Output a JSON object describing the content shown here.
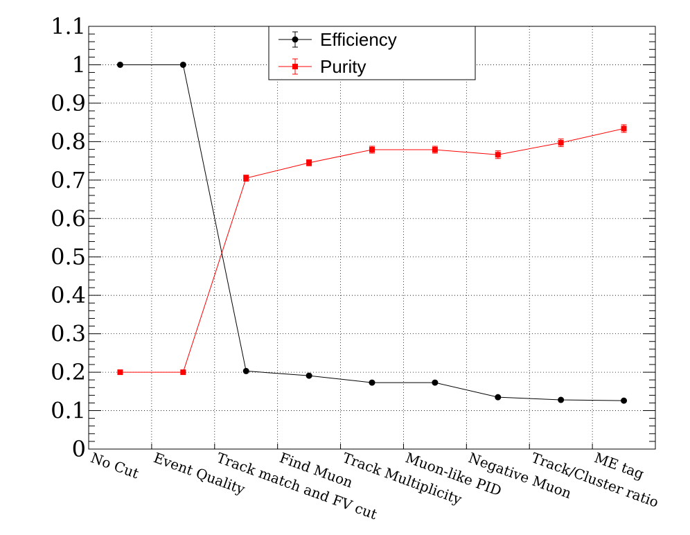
{
  "chart_data": {
    "type": "line",
    "title": "",
    "xlabel": "",
    "ylabel": "",
    "categories": [
      "No Cut",
      "Event Quality",
      "Track match and FV cut",
      "Find Muon",
      "Track Multiplicity",
      "Muon-like PID",
      "Negative Muon",
      "Track/Cluster ratio",
      "ME tag"
    ],
    "ylim": [
      0,
      1.1
    ],
    "yticks": [
      "0",
      "0.1",
      "0.2",
      "0.3",
      "0.4",
      "0.5",
      "0.6",
      "0.7",
      "0.8",
      "0.9",
      "1",
      "1.1"
    ],
    "grid": true,
    "legend_position": "top-center",
    "series": [
      {
        "name": "Efficiency",
        "color": "#000000",
        "marker": "circle",
        "values": [
          1.0,
          1.0,
          0.203,
          0.191,
          0.173,
          0.173,
          0.135,
          0.128,
          0.126
        ],
        "errors": [
          0,
          0,
          0.002,
          0.002,
          0.002,
          0.002,
          0.002,
          0.002,
          0.002
        ]
      },
      {
        "name": "Purity",
        "color": "#ff0000",
        "marker": "square",
        "values": [
          0.2,
          0.2,
          0.705,
          0.745,
          0.779,
          0.779,
          0.766,
          0.797,
          0.834
        ],
        "errors": [
          0,
          0,
          0.008,
          0.008,
          0.009,
          0.009,
          0.01,
          0.01,
          0.01
        ]
      }
    ]
  }
}
